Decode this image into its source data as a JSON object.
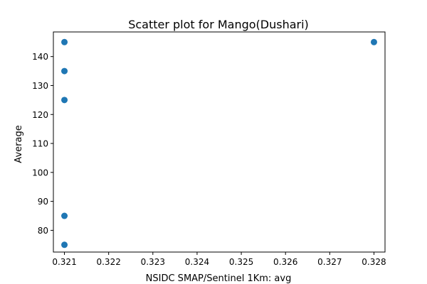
{
  "chart_data": {
    "type": "scatter",
    "title": "Scatter plot for Mango(Dushari)",
    "xlabel": "NSIDC SMAP/Sentinel 1Km: avg",
    "ylabel": "Average",
    "xlim": [
      0.32075,
      0.32825
    ],
    "ylim": [
      72.5,
      148.5
    ],
    "xticks": [
      0.321,
      0.322,
      0.323,
      0.324,
      0.325,
      0.326,
      0.327,
      0.328
    ],
    "xtick_labels": [
      "0.321",
      "0.322",
      "0.323",
      "0.324",
      "0.325",
      "0.326",
      "0.327",
      "0.328"
    ],
    "yticks": [
      80,
      90,
      100,
      110,
      120,
      130,
      140
    ],
    "ytick_labels": [
      "80",
      "90",
      "100",
      "110",
      "120",
      "130",
      "140"
    ],
    "grid": false,
    "marker_color": "#1f77b4",
    "points": [
      {
        "x": 0.321,
        "y": 145
      },
      {
        "x": 0.321,
        "y": 135
      },
      {
        "x": 0.321,
        "y": 125
      },
      {
        "x": 0.321,
        "y": 85
      },
      {
        "x": 0.321,
        "y": 75
      },
      {
        "x": 0.328,
        "y": 145
      }
    ]
  }
}
